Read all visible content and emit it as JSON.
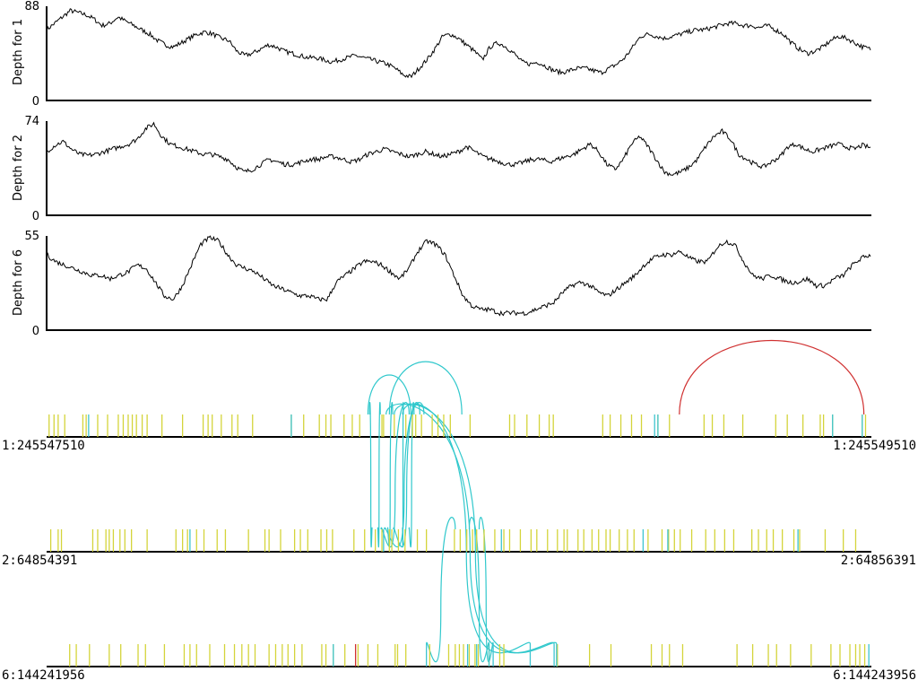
{
  "colors": {
    "depth_line": "#000000",
    "axis": "#000000",
    "mark_yellow": "#d4d43a",
    "mark_cyan": "#3ec4d0",
    "mark_red": "#d03030",
    "arc_cyan": "#30c8cc",
    "arc_red": "#d03030"
  },
  "chart_data": [
    {
      "type": "line",
      "ylabel": "Depth for 1",
      "ylim": [
        0,
        88
      ],
      "tick_labels": [
        "0",
        "88"
      ],
      "region": [
        245547510,
        245549510
      ],
      "profile": [
        66,
        72,
        78,
        84,
        82,
        80,
        76,
        70,
        72,
        78,
        74,
        70,
        66,
        62,
        56,
        52,
        50,
        54,
        58,
        62,
        64,
        62,
        58,
        56,
        46,
        42,
        44,
        48,
        52,
        50,
        46,
        44,
        42,
        40,
        40,
        38,
        36,
        38,
        40,
        42,
        40,
        38,
        36,
        34,
        30,
        24,
        22,
        30,
        38,
        48,
        60,
        62,
        58,
        52,
        46,
        38,
        50,
        54,
        50,
        44,
        36,
        34,
        36,
        32,
        28,
        26,
        28,
        30,
        30,
        28,
        26,
        30,
        34,
        40,
        50,
        60,
        62,
        60,
        58,
        60,
        62,
        64,
        66,
        66,
        68,
        70,
        72,
        72,
        70,
        70,
        68,
        70,
        66,
        62,
        54,
        48,
        44,
        46,
        50,
        56,
        60,
        58,
        54,
        50,
        48
      ]
    },
    {
      "type": "line",
      "ylabel": "Depth for 2",
      "ylim": [
        0,
        74
      ],
      "tick_labels": [
        "0",
        "74"
      ],
      "region": [
        64854391,
        64856391
      ],
      "profile": [
        50,
        55,
        58,
        52,
        48,
        47,
        48,
        50,
        52,
        54,
        56,
        60,
        68,
        72,
        62,
        56,
        54,
        52,
        50,
        48,
        48,
        46,
        44,
        38,
        34,
        36,
        40,
        44,
        42,
        40,
        40,
        42,
        44,
        44,
        46,
        46,
        44,
        42,
        44,
        48,
        50,
        52,
        50,
        48,
        46,
        48,
        50,
        48,
        46,
        48,
        50,
        54,
        50,
        46,
        44,
        42,
        40,
        40,
        42,
        44,
        44,
        42,
        44,
        46,
        48,
        52,
        56,
        50,
        40,
        36,
        44,
        56,
        62,
        54,
        44,
        34,
        32,
        34,
        38,
        44,
        54,
        62,
        66,
        60,
        48,
        44,
        40,
        38,
        42,
        46,
        54,
        56,
        52,
        50,
        52,
        54,
        56,
        54,
        52,
        55,
        53
      ]
    },
    {
      "type": "line",
      "ylabel": "Depth for 6",
      "ylim": [
        0,
        55
      ],
      "tick_labels": [
        "0",
        "55"
      ],
      "region": [
        144241956,
        144243956
      ],
      "profile": [
        44,
        40,
        38,
        36,
        34,
        32,
        32,
        30,
        32,
        34,
        38,
        36,
        28,
        20,
        18,
        26,
        38,
        50,
        54,
        52,
        44,
        38,
        36,
        34,
        30,
        26,
        24,
        22,
        20,
        20,
        18,
        18,
        28,
        32,
        36,
        40,
        40,
        38,
        34,
        30,
        36,
        46,
        52,
        50,
        44,
        32,
        20,
        14,
        12,
        12,
        10,
        10,
        10,
        10,
        12,
        14,
        16,
        22,
        26,
        28,
        26,
        22,
        20,
        24,
        28,
        32,
        38,
        42,
        44,
        44,
        46,
        42,
        40,
        40,
        48,
        52,
        50,
        40,
        32,
        30,
        32,
        30,
        28,
        28,
        30,
        26,
        26,
        30,
        32,
        38,
        42,
        44
      ]
    },
    {
      "type": "other",
      "regions": [
        {
          "name": "chr1",
          "start_label": "1:245547510",
          "end_label": "1:245549510"
        },
        {
          "name": "chr2",
          "start_label": "2:64854391",
          "end_label": "2:64856391"
        },
        {
          "name": "chr6",
          "start_label": "6:144241956",
          "end_label": "6:144243956"
        }
      ],
      "marks": {
        "chr1": {
          "yellow": [
            0.3,
            0.9,
            1.4,
            2.2,
            4.4,
            4.8,
            6.2,
            7.4,
            8.7,
            9.3,
            9.9,
            10.4,
            10.9,
            11.6,
            12.2,
            14.0,
            16.5,
            19.0,
            19.6,
            20.1,
            21.2,
            22.5,
            23.2,
            25.0,
            29.7,
            31.2,
            33.1,
            33.9,
            34.5,
            36.1,
            37.1,
            38.0,
            40.7,
            40.9,
            42.2,
            43.6,
            44.4,
            44.8,
            45.5,
            46.8,
            47.5,
            48.2,
            49.0,
            51.4,
            56.2,
            56.8,
            58.3,
            59.8,
            61.0,
            61.5,
            67.5,
            68.4,
            69.7,
            71.0,
            72.2,
            74.2,
            75.6,
            79.8,
            80.8,
            82.2,
            84.5,
            88.5,
            89.9,
            91.8,
            93.9,
            94.3,
            95.4,
            99.0,
            99.4
          ],
          "cyan": [
            5.1,
            29.7,
            73.8,
            74.2,
            95.4,
            99.0
          ]
        },
        "chr2": {
          "yellow": [
            0.5,
            1.4,
            1.8,
            5.6,
            6.2,
            7.2,
            7.6,
            8.1,
            8.9,
            9.5,
            10.3,
            12.2,
            15.7,
            16.5,
            17.1,
            18.2,
            19.1,
            20.7,
            21.7,
            24.5,
            26.5,
            27.0,
            28.4,
            30.1,
            30.8,
            31.7,
            33.3,
            34.0,
            34.7,
            37.3,
            38.6,
            39.9,
            40.7,
            41.6,
            41.9,
            42.7,
            43.5,
            45.0,
            46.1,
            49.5,
            50.2,
            51.0,
            51.7,
            52.2,
            53.1,
            54.4,
            55.5,
            56.2,
            57.5,
            58.8,
            59.5,
            60.8,
            62.0,
            62.8,
            63.2,
            64.5,
            65.2,
            66.2,
            67.0,
            67.9,
            68.4,
            69.5,
            70.5,
            71.3,
            73.0,
            74.7,
            75.5,
            76.2,
            76.9,
            78.3,
            80.0,
            81.1,
            82.3,
            83.4,
            85.6,
            86.4,
            87.4,
            88.2,
            89.3,
            90.7,
            91.4,
            94.5,
            96.7,
            98.2
          ],
          "cyan": [
            17.4,
            40.9,
            55.2,
            72.4,
            75.4,
            91.2
          ]
        },
        "chr6": {
          "yellow": [
            2.8,
            3.6,
            5.2,
            7.6,
            9.0,
            11.1,
            12.0,
            14.3,
            16.7,
            17.4,
            18.2,
            19.8,
            21.6,
            22.8,
            23.7,
            24.5,
            25.3,
            27.0,
            27.8,
            28.6,
            29.3,
            30.1,
            31.0,
            33.4,
            33.9,
            34.8,
            36.2,
            37.8,
            39.0,
            40.2,
            42.3,
            42.6,
            43.6,
            46.5,
            48.8,
            49.6,
            50.1,
            50.6,
            51.3,
            52.0,
            52.4,
            53.7,
            55.0,
            55.5,
            62.0,
            65.9,
            68.5,
            73.4,
            74.7,
            75.6,
            77.2,
            83.8,
            85.7,
            87.6,
            88.6,
            90.3,
            92.8,
            95.2,
            96.3,
            97.5,
            98.2,
            98.7,
            99.3
          ],
          "cyan": [
            34.8,
            46.1,
            51.1,
            52.2,
            53.7,
            54.2,
            58.7,
            61.6,
            61.9,
            99.8
          ],
          "red": [
            37.5
          ]
        }
      },
      "arcs": [
        {
          "from_track": "chr1",
          "from": 39.0,
          "to_track": "chr1",
          "to": 44.2,
          "color": "cyan"
        },
        {
          "from_track": "chr1",
          "from": 41.6,
          "to_track": "chr1",
          "to": 50.4,
          "color": "cyan"
        },
        {
          "from_track": "chr1",
          "from": 76.8,
          "to_track": "chr1",
          "to": 99.2,
          "color": "red"
        },
        {
          "from_track": "chr1",
          "from": 39.2,
          "to_track": "chr2",
          "to": 39.5,
          "color": "cyan"
        },
        {
          "from_track": "chr1",
          "from": 40.5,
          "to_track": "chr2",
          "to": 40.2,
          "color": "cyan"
        },
        {
          "from_track": "chr1",
          "from": 42.0,
          "to_track": "chr2",
          "to": 41.4,
          "color": "cyan"
        },
        {
          "from_track": "chr1",
          "from": 44.0,
          "to_track": "chr2",
          "to": 40.6,
          "color": "cyan"
        },
        {
          "from_track": "chr1",
          "from": 43.3,
          "to_track": "chr2",
          "to": 43.2,
          "color": "cyan"
        },
        {
          "from_track": "chr1",
          "from": 45.3,
          "to_track": "chr2",
          "to": 42.1,
          "color": "cyan"
        },
        {
          "from_track": "chr1",
          "from": 44.6,
          "to_track": "chr2",
          "to": 44.0,
          "color": "cyan"
        },
        {
          "from_track": "chr1",
          "from": 45.8,
          "to_track": "chr2",
          "to": 41.0,
          "color": "cyan"
        },
        {
          "from_track": "chr1",
          "from": 41.2,
          "to_track": "chr6",
          "to": 61.6,
          "color": "cyan"
        },
        {
          "from_track": "chr1",
          "from": 42.2,
          "to_track": "chr6",
          "to": 61.9,
          "color": "cyan"
        },
        {
          "from_track": "chr1",
          "from": 43.2,
          "to_track": "chr6",
          "to": 58.7,
          "color": "cyan"
        },
        {
          "from_track": "chr2",
          "from": 49.6,
          "to_track": "chr6",
          "to": 46.1,
          "color": "cyan"
        },
        {
          "from_track": "chr2",
          "from": 51.3,
          "to_track": "chr6",
          "to": 53.7,
          "color": "cyan"
        },
        {
          "from_track": "chr2",
          "from": 52.5,
          "to_track": "chr6",
          "to": 54.2,
          "color": "cyan"
        }
      ]
    }
  ]
}
